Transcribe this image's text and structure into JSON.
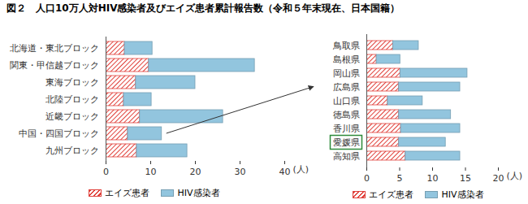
{
  "chart_data": [
    {
      "type": "bar",
      "title": "図２　人口10万人対HIV感染者及びエイズ患者累計報告数（令和５年末現在、日本国籍）",
      "orientation": "horizontal",
      "stacked": true,
      "categories": [
        "北海道・東北ブロック",
        "関東・甲信越ブロック",
        "東海ブロック",
        "北陸ブロック",
        "近畿ブロック",
        "中国・四国ブロック",
        "九州ブロック"
      ],
      "series": [
        {
          "name": "エイズ患者",
          "color": "#e0403a",
          "values": [
            4.2,
            9.6,
            6.7,
            4.0,
            7.6,
            4.9,
            6.9
          ]
        },
        {
          "name": "HIV感染者",
          "color": "#92c5de",
          "values": [
            6.2,
            23.7,
            13.3,
            6.2,
            18.6,
            7.6,
            11.3
          ]
        }
      ],
      "xlim": [
        0,
        40
      ],
      "xticks": [
        0,
        10,
        20,
        30,
        40
      ],
      "xlabel": "(人)",
      "legend": "bottom"
    },
    {
      "type": "bar",
      "orientation": "horizontal",
      "stacked": true,
      "categories": [
        "鳥取県",
        "島根県",
        "岡山県",
        "広島県",
        "山口県",
        "徳島県",
        "香川県",
        "愛媛県",
        "高知県"
      ],
      "series": [
        {
          "name": "エイズ患者",
          "color": "#e0403a",
          "values": [
            4.0,
            1.5,
            5.1,
            4.9,
            3.2,
            4.9,
            5.2,
            4.9,
            5.9
          ]
        },
        {
          "name": "HIV感染者",
          "color": "#92c5de",
          "values": [
            3.9,
            3.6,
            10.2,
            9.3,
            5.3,
            7.9,
            9.0,
            7.1,
            8.3
          ]
        }
      ],
      "xlim": [
        0,
        20
      ],
      "xticks": [
        0,
        5,
        10,
        15,
        20
      ],
      "xlabel": "(人)",
      "legend": "bottom",
      "highlight": "愛媛県"
    }
  ]
}
